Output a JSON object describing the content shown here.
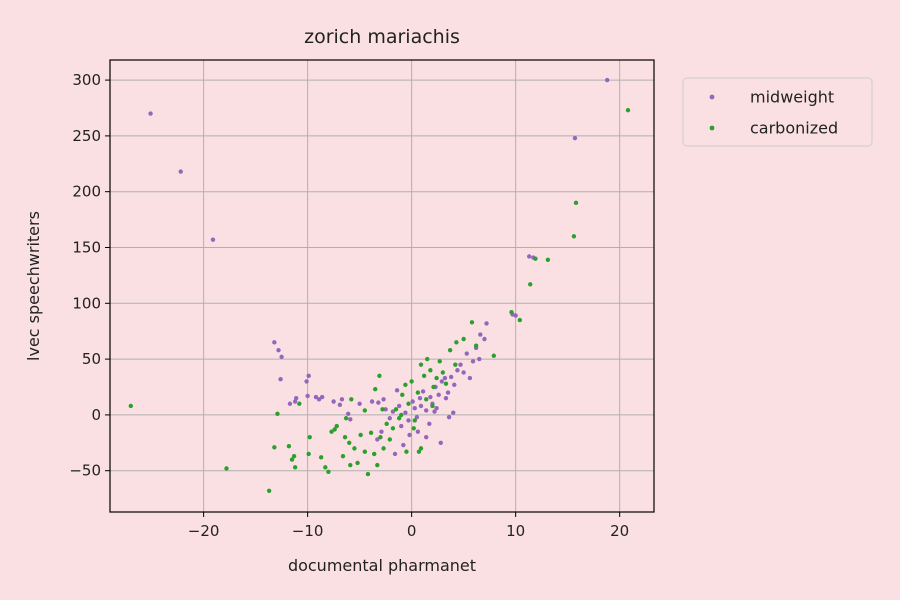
{
  "chart_data": {
    "type": "scatter",
    "title": "zorich mariachis",
    "xlabel": "documental pharmanet",
    "ylabel": "lvec speechwriters",
    "xlim": [
      -29,
      23.3
    ],
    "ylim": [
      -87,
      318
    ],
    "xticks": [
      -20,
      -10,
      0,
      10,
      20
    ],
    "xtick_labels": [
      "−20",
      "−10",
      "0",
      "10",
      "20"
    ],
    "yticks": [
      -50,
      0,
      50,
      100,
      150,
      200,
      250,
      300
    ],
    "ytick_labels": [
      "−50",
      "0",
      "50",
      "100",
      "150",
      "200",
      "250",
      "300"
    ],
    "grid": true,
    "legend_position": "upper-right-outside",
    "colors": {
      "background": "#fae0e3",
      "midweight": "#9467bd",
      "carbonized": "#2ca02c",
      "grid": "#b0b0b0"
    },
    "series": [
      {
        "name": "midweight",
        "points": [
          [
            -25.1,
            270
          ],
          [
            -22.2,
            218
          ],
          [
            -19.1,
            157
          ],
          [
            18.8,
            300
          ],
          [
            15.7,
            248
          ],
          [
            11.3,
            142
          ],
          [
            11.7,
            141
          ],
          [
            9.7,
            90
          ],
          [
            10.0,
            89
          ],
          [
            7.2,
            82
          ],
          [
            6.6,
            72
          ],
          [
            7.0,
            68
          ],
          [
            -13.2,
            65
          ],
          [
            -12.8,
            58
          ],
          [
            -12.5,
            52
          ],
          [
            -12.6,
            32
          ],
          [
            -9.9,
            35
          ],
          [
            -10.1,
            30
          ],
          [
            -9.2,
            16
          ],
          [
            -8.6,
            16
          ],
          [
            -8.9,
            14
          ],
          [
            -10.0,
            17
          ],
          [
            -11.1,
            15
          ],
          [
            -11.2,
            12
          ],
          [
            -11.7,
            10
          ],
          [
            -7.5,
            12
          ],
          [
            -6.9,
            9
          ],
          [
            -6.7,
            14
          ],
          [
            -6.1,
            1
          ],
          [
            -5.0,
            10
          ],
          [
            -5.9,
            -4
          ],
          [
            -3.8,
            12
          ],
          [
            -3.2,
            11
          ],
          [
            -2.7,
            14
          ],
          [
            -2.5,
            5
          ],
          [
            -2.1,
            -3
          ],
          [
            -1.8,
            3
          ],
          [
            -1.2,
            8
          ],
          [
            -1.0,
            -10
          ],
          [
            -0.6,
            2
          ],
          [
            -0.3,
            -5
          ],
          [
            0.1,
            12
          ],
          [
            0.3,
            6
          ],
          [
            0.5,
            -2
          ],
          [
            0.8,
            15
          ],
          [
            1.1,
            21
          ],
          [
            1.4,
            4
          ],
          [
            1.7,
            -8
          ],
          [
            2.0,
            10
          ],
          [
            2.3,
            25
          ],
          [
            2.6,
            18
          ],
          [
            2.9,
            30
          ],
          [
            3.2,
            33
          ],
          [
            3.5,
            20
          ],
          [
            3.8,
            34
          ],
          [
            4.1,
            27
          ],
          [
            4.4,
            40
          ],
          [
            4.7,
            45
          ],
          [
            5.0,
            38
          ],
          [
            5.3,
            55
          ],
          [
            5.6,
            33
          ],
          [
            5.9,
            48
          ],
          [
            6.2,
            60
          ],
          [
            6.5,
            50
          ],
          [
            -3.3,
            -22
          ],
          [
            -1.6,
            -35
          ],
          [
            -0.8,
            -27
          ],
          [
            0.6,
            -15
          ],
          [
            1.4,
            -20
          ],
          [
            2.8,
            -25
          ],
          [
            3.3,
            15
          ],
          [
            4.0,
            2
          ],
          [
            -2.9,
            -15
          ],
          [
            -0.2,
            -18
          ],
          [
            0.9,
            8
          ],
          [
            1.8,
            16
          ],
          [
            2.4,
            6
          ],
          [
            -1.4,
            22
          ],
          [
            3.6,
            -2
          ],
          [
            2.2,
            3
          ]
        ]
      },
      {
        "name": "carbonized",
        "points": [
          [
            -27.0,
            8
          ],
          [
            20.8,
            273
          ],
          [
            15.8,
            190
          ],
          [
            15.6,
            160
          ],
          [
            13.1,
            139
          ],
          [
            11.9,
            140
          ],
          [
            11.4,
            117
          ],
          [
            10.4,
            85
          ],
          [
            9.6,
            92
          ],
          [
            7.9,
            53
          ],
          [
            6.2,
            62
          ],
          [
            5.8,
            83
          ],
          [
            5.0,
            68
          ],
          [
            4.3,
            65
          ],
          [
            3.7,
            58
          ],
          [
            -17.8,
            -48
          ],
          [
            -13.7,
            -68
          ],
          [
            -13.2,
            -29
          ],
          [
            -11.8,
            -28
          ],
          [
            -11.5,
            -40
          ],
          [
            -11.2,
            -47
          ],
          [
            -11.3,
            -37
          ],
          [
            -10.8,
            10
          ],
          [
            -9.8,
            -20
          ],
          [
            -9.9,
            -35
          ],
          [
            -8.7,
            -38
          ],
          [
            -8.3,
            -47
          ],
          [
            -8.0,
            -51
          ],
          [
            -7.7,
            -15
          ],
          [
            -7.4,
            -13
          ],
          [
            -6.6,
            -37
          ],
          [
            -6.4,
            -20
          ],
          [
            -6.0,
            -25
          ],
          [
            -5.9,
            -45
          ],
          [
            -5.5,
            -30
          ],
          [
            -5.2,
            -43
          ],
          [
            -4.9,
            -18
          ],
          [
            -4.5,
            -33
          ],
          [
            -4.2,
            -53
          ],
          [
            -3.9,
            -16
          ],
          [
            -3.6,
            -35
          ],
          [
            -3.3,
            -45
          ],
          [
            -3.0,
            -20
          ],
          [
            -2.7,
            -30
          ],
          [
            -2.4,
            -8
          ],
          [
            -2.1,
            -22
          ],
          [
            -1.8,
            -12
          ],
          [
            -1.5,
            5
          ],
          [
            -1.2,
            -3
          ],
          [
            -0.9,
            18
          ],
          [
            -0.6,
            27
          ],
          [
            -0.3,
            10
          ],
          [
            0.0,
            30
          ],
          [
            0.3,
            -5
          ],
          [
            0.6,
            20
          ],
          [
            0.9,
            45
          ],
          [
            1.2,
            35
          ],
          [
            1.5,
            50
          ],
          [
            1.8,
            40
          ],
          [
            2.1,
            25
          ],
          [
            2.4,
            33
          ],
          [
            2.7,
            48
          ],
          [
            3.0,
            38
          ],
          [
            3.3,
            28
          ],
          [
            -3.1,
            35
          ],
          [
            -4.5,
            4
          ],
          [
            -6.3,
            -3
          ],
          [
            -12.9,
            1
          ],
          [
            -0.5,
            -33
          ],
          [
            0.7,
            -33
          ],
          [
            0.9,
            -30
          ],
          [
            -2.8,
            5
          ],
          [
            -1.0,
            0
          ],
          [
            1.4,
            14
          ],
          [
            2.0,
            8
          ],
          [
            -3.5,
            23
          ],
          [
            0.2,
            -12
          ],
          [
            4.2,
            45
          ],
          [
            -7.2,
            -10
          ],
          [
            -5.8,
            14
          ]
        ]
      }
    ]
  }
}
